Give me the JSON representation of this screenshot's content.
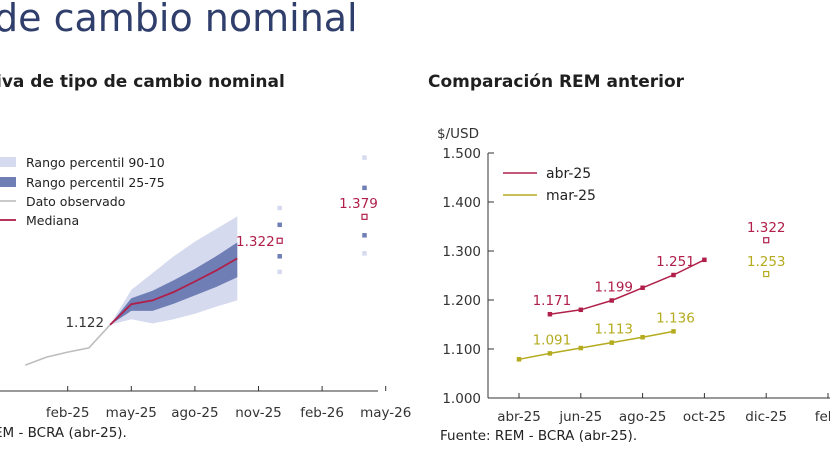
{
  "page": {
    "title": "de cambio nominal"
  },
  "colors": {
    "band_90_10": "#d6daee",
    "band_25_75": "#6f7fb5",
    "observed": "#bdbdbd",
    "median": "#b01f4a",
    "apr25": "#b0204b",
    "mar25": "#b5ab1e",
    "axis": "#333333"
  },
  "chart_data": [
    {
      "type": "area",
      "title": "iva de tipo de cambio nominal",
      "source": "EM - BCRA (abr-25).",
      "x_ticks": [
        "feb-25",
        "may-25",
        "ago-25",
        "nov-25",
        "feb-26",
        "may-26"
      ],
      "legend": {
        "placement": "top-left",
        "entries": [
          "Rango percentil 90-10",
          "Rango percentil 25-75",
          "Dato observado",
          "Mediana"
        ]
      },
      "observed": {
        "name": "Dato observado",
        "x": [
          "dic-24",
          "ene-25",
          "feb-25",
          "mar-25",
          "abr-25"
        ],
        "values": [
          1026,
          1045,
          1057,
          1067,
          1122
        ]
      },
      "median": {
        "name": "Mediana",
        "x": [
          "abr-25",
          "may-25",
          "jun-25",
          "jul-25",
          "ago-25",
          "sep-25",
          "oct-25"
        ],
        "values": [
          1122,
          1171,
          1180,
          1200,
          1225,
          1251,
          1280
        ]
      },
      "band_25_75": {
        "name": "Rango percentil 25-75",
        "x": [
          "abr-25",
          "may-25",
          "jun-25",
          "jul-25",
          "ago-25",
          "sep-25",
          "oct-25"
        ],
        "low": [
          1122,
          1155,
          1155,
          1172,
          1192,
          1212,
          1235
        ],
        "high": [
          1122,
          1185,
          1203,
          1228,
          1255,
          1285,
          1318
        ]
      },
      "band_90_10": {
        "name": "Rango percentil 90-10",
        "x": [
          "abr-25",
          "may-25",
          "jun-25",
          "jul-25",
          "ago-25",
          "sep-25",
          "oct-25"
        ],
        "low": [
          1122,
          1135,
          1125,
          1135,
          1148,
          1165,
          1180
        ],
        "high": [
          1122,
          1205,
          1245,
          1285,
          1320,
          1350,
          1380
        ]
      },
      "point_forecasts": [
        {
          "x": "dic-25",
          "median": 1322,
          "label": "1.322",
          "p25": 1285,
          "p75": 1360,
          "p10": 1248,
          "p90": 1400
        },
        {
          "x": "abr-26",
          "median": 1379,
          "label": "1.379",
          "p25": 1335,
          "p75": 1448,
          "p10": 1292,
          "p90": 1520
        }
      ],
      "annotations": [
        {
          "x": "abr-25",
          "value": 1122,
          "label": "1.122"
        }
      ]
    },
    {
      "type": "line",
      "title": "Comparación REM anterior",
      "ylabel": "$/USD",
      "source": "Fuente: REM - BCRA (abr-25).",
      "ylim": [
        1000,
        1500
      ],
      "y_ticks": [
        "1.000",
        "1.100",
        "1.200",
        "1.300",
        "1.400",
        "1.500"
      ],
      "x_ticks": [
        "abr-25",
        "jun-25",
        "ago-25",
        "oct-25",
        "dic-25",
        "feb-"
      ],
      "legend": {
        "placement": "top-left",
        "entries": [
          "abr-25",
          "mar-25"
        ]
      },
      "series": [
        {
          "name": "abr-25",
          "x": [
            "may-25",
            "jun-25",
            "jul-25",
            "ago-25",
            "sep-25",
            "oct-25"
          ],
          "values": [
            1171,
            1180,
            1199,
            1225,
            1251,
            1282
          ],
          "point": {
            "x": "dic-25",
            "value": 1322,
            "label": "1.322"
          },
          "labels": [
            {
              "x": "may-25",
              "value": 1171,
              "label": "1.171"
            },
            {
              "x": "jul-25",
              "value": 1199,
              "label": "1.199"
            },
            {
              "x": "sep-25",
              "value": 1251,
              "label": "1.251"
            }
          ]
        },
        {
          "name": "mar-25",
          "x": [
            "abr-25",
            "may-25",
            "jun-25",
            "jul-25",
            "ago-25",
            "sep-25"
          ],
          "values": [
            1079,
            1091,
            1102,
            1113,
            1124,
            1136
          ],
          "point": {
            "x": "dic-25",
            "value": 1253,
            "label": "1.253"
          },
          "labels": [
            {
              "x": "may-25",
              "value": 1091,
              "label": "1.091"
            },
            {
              "x": "jul-25",
              "value": 1113,
              "label": "1.113"
            },
            {
              "x": "sep-25",
              "value": 1136,
              "label": "1.136"
            }
          ]
        }
      ]
    }
  ]
}
